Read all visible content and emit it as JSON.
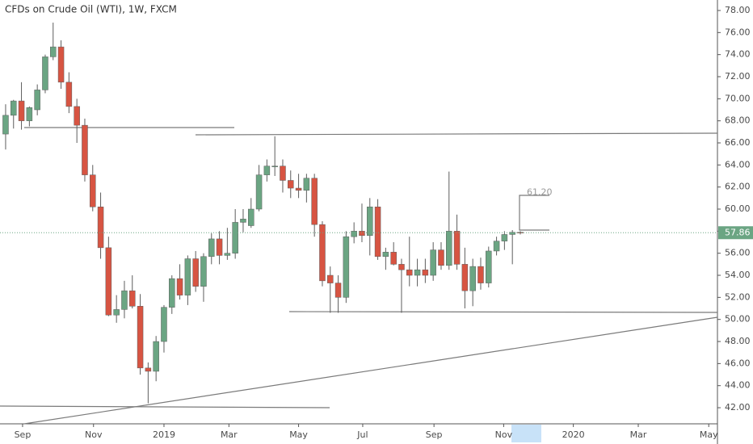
{
  "chart_data": {
    "type": "candlestick",
    "title": "CFDs on Crude Oil (WTI), 1W, FXCM",
    "up_color": "#6ba583",
    "down_color": "#d75442",
    "wick_color": "#5d5d5d",
    "open": [
      66.8,
      68.5,
      69.8,
      68.0,
      69.0,
      70.8,
      73.8,
      74.7,
      71.5,
      69.3,
      67.6,
      63.1,
      60.2,
      56.5,
      50.4,
      50.9,
      52.6,
      51.2,
      45.6,
      45.3,
      48.0,
      51.1,
      53.7,
      52.2,
      55.5,
      53.0,
      55.7,
      57.3,
      55.8,
      56.0,
      58.8,
      58.5,
      60.0,
      63.1,
      63.9,
      63.9,
      62.6,
      61.9,
      61.7,
      62.8,
      58.6,
      54.0,
      53.3,
      52.0,
      57.5,
      58.0,
      57.6,
      60.2,
      55.7,
      56.1,
      55.0,
      54.5,
      54.0,
      54.5,
      54.0,
      56.3,
      54.9,
      58.0,
      55.0,
      52.6,
      54.8,
      53.3,
      56.2,
      57.1,
      57.7,
      57.9
    ],
    "high": [
      69.5,
      69.9,
      71.5,
      69.3,
      71.3,
      74.0,
      76.9,
      75.3,
      72.4,
      70.0,
      68.2,
      64.0,
      61.5,
      57.5,
      52.2,
      53.5,
      54.0,
      52.3,
      46.1,
      48.5,
      51.3,
      54.0,
      55.0,
      55.8,
      56.2,
      56.0,
      57.8,
      58.0,
      58.3,
      60.0,
      60.0,
      61.0,
      64.0,
      64.5,
      66.6,
      64.5,
      63.5,
      63.2,
      63.2,
      63.2,
      58.9,
      54.8,
      54.0,
      58.0,
      58.8,
      60.5,
      61.0,
      60.9,
      56.5,
      57.0,
      55.5,
      57.5,
      55.5,
      55.5,
      57.0,
      57.0,
      63.4,
      59.5,
      56.5,
      55.5,
      55.6,
      56.6,
      57.5,
      58.0,
      58.1,
      58.0
    ],
    "low": [
      65.4,
      67.3,
      67.2,
      67.5,
      68.5,
      70.5,
      73.5,
      70.9,
      68.7,
      66.0,
      62.5,
      59.8,
      55.5,
      50.3,
      49.7,
      50.1,
      51.0,
      45.0,
      42.4,
      44.4,
      47.0,
      50.5,
      51.8,
      51.3,
      52.5,
      51.6,
      55.0,
      55.0,
      55.4,
      55.5,
      57.9,
      58.3,
      59.8,
      62.5,
      63.0,
      61.5,
      61.0,
      61.0,
      60.6,
      57.5,
      53.0,
      50.6,
      50.6,
      51.5,
      56.9,
      57.0,
      55.8,
      55.4,
      54.5,
      54.9,
      50.6,
      53.0,
      53.0,
      53.3,
      53.5,
      54.5,
      54.5,
      54.5,
      51.0,
      51.2,
      52.7,
      52.9,
      55.8,
      56.3,
      55.0,
      57.7
    ],
    "close": [
      68.5,
      69.8,
      68.0,
      69.2,
      70.8,
      73.8,
      74.7,
      71.5,
      69.3,
      67.6,
      63.1,
      60.2,
      56.5,
      50.4,
      50.9,
      52.6,
      51.2,
      45.6,
      45.3,
      48.0,
      51.1,
      53.7,
      52.2,
      55.5,
      53.0,
      55.7,
      57.3,
      55.8,
      56.0,
      58.8,
      59.1,
      60.0,
      63.1,
      63.9,
      63.9,
      62.6,
      61.9,
      61.7,
      62.8,
      58.6,
      53.5,
      53.3,
      52.0,
      57.5,
      58.0,
      57.6,
      60.2,
      55.7,
      56.1,
      55.0,
      54.5,
      54.0,
      54.5,
      54.0,
      56.3,
      54.9,
      58.0,
      55.0,
      52.6,
      54.8,
      53.3,
      56.2,
      57.1,
      57.7,
      57.9,
      57.86
    ],
    "last_price": 57.86,
    "annotation": {
      "value": 61.2,
      "label": "61.20"
    },
    "xlim": [
      -0.71,
      89.9
    ],
    "xticks": [
      {
        "value": 2.14,
        "label": "Sep"
      },
      {
        "value": 11.1,
        "label": "Nov"
      },
      {
        "value": 20,
        "label": "2019"
      },
      {
        "value": 28.2,
        "label": "Mar"
      },
      {
        "value": 37,
        "label": "May"
      },
      {
        "value": 45.1,
        "label": "Jul"
      },
      {
        "value": 54.1,
        "label": "Sep"
      },
      {
        "value": 62.9,
        "label": "Nov"
      },
      {
        "value": 71.7,
        "label": "2020"
      },
      {
        "value": 79.9,
        "label": "Mar"
      },
      {
        "value": 88.8,
        "label": "May"
      }
    ],
    "ylim": [
      40.54,
      78.95
    ],
    "yticks": [
      {
        "value": 42,
        "label": "42.00"
      },
      {
        "value": 44,
        "label": "44.00"
      },
      {
        "value": 46,
        "label": "46.00"
      },
      {
        "value": 48,
        "label": "48.00"
      },
      {
        "value": 50,
        "label": "50.00"
      },
      {
        "value": 52,
        "label": "52.00"
      },
      {
        "value": 54,
        "label": "54.00"
      },
      {
        "value": 56,
        "label": "56.00"
      },
      {
        "value": 58,
        "label": "58.00"
      },
      {
        "value": 60,
        "label": "60.00"
      },
      {
        "value": 62,
        "label": "62.00"
      },
      {
        "value": 64,
        "label": "64.00"
      },
      {
        "value": 66,
        "label": "66.00"
      },
      {
        "value": 68,
        "label": "68.00"
      },
      {
        "value": 70,
        "label": "70.00"
      },
      {
        "value": 72,
        "label": "72.00"
      },
      {
        "value": 74,
        "label": "74.00"
      },
      {
        "value": 76,
        "label": "76.00"
      },
      {
        "value": 78,
        "label": "78.00"
      }
    ]
  }
}
